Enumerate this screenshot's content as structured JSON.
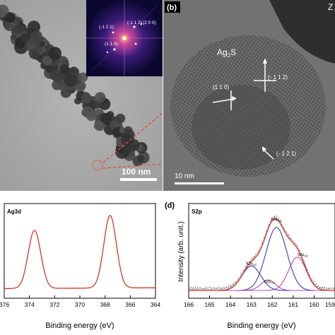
{
  "panel_b": {
    "label": "(b)",
    "corner_letter": "Z",
    "phase_label": "Ag",
    "phase_sub": "2",
    "phase_tail": "S",
    "plane_112": "(- 1 1 2)",
    "plane_110": "(1 1 0)",
    "plane_121": "(- 1 2 1)",
    "scalebar": "10 nm"
  },
  "panel_a": {
    "scalebar": "100 nm",
    "fft_labels": [
      "(-1 1 2)",
      "(2 0 0)",
      "(-1 2 1)",
      "(1 1 0)"
    ]
  },
  "panel_c": {
    "label": "Ag3d",
    "chart_data": {
      "type": "line",
      "xlabel": "Binding energy (eV)",
      "ylabel": "",
      "xlim": [
        376,
        364
      ],
      "x_ticks": [
        376,
        374,
        372,
        370,
        368,
        366,
        364
      ],
      "x_tick_labels": [
        "376",
        "374",
        "372",
        "370",
        "368",
        "366",
        "364"
      ],
      "peaks": [
        {
          "center": 373.6,
          "height": 0.72,
          "width": 0.5
        },
        {
          "center": 367.6,
          "height": 0.9,
          "width": 0.5
        }
      ],
      "baseline": 0.05,
      "color": "#d0392b"
    }
  },
  "panel_d": {
    "label": "(d)",
    "title": "S2p",
    "chart_data": {
      "type": "line",
      "xlabel": "Binding energy (eV)",
      "ylabel": "Intensity (arb. unit.)",
      "xlim": [
        166,
        159
      ],
      "x_ticks": [
        166,
        165,
        164,
        163,
        162,
        161,
        160,
        159
      ],
      "x_tick_labels": [
        "166",
        "165",
        "164",
        "163",
        "162",
        "161",
        "160",
        "159"
      ],
      "components": [
        {
          "name": "S2p",
          "sub": "1/2",
          "center": 161.8,
          "height": 0.72,
          "width": 0.5,
          "color": "#3b3bb8"
        },
        {
          "name": "S2p",
          "sub": "3/2",
          "center": 160.8,
          "height": 0.38,
          "width": 0.42,
          "color": "#b04fb0"
        },
        {
          "name": "S2p",
          "sub": "3/2",
          "center": 163.0,
          "height": 0.28,
          "width": 0.45,
          "color": "#3b3bb8"
        },
        {
          "name": "S2p",
          "sub": "1/2",
          "center": 162.2,
          "height": 0.12,
          "width": 0.35,
          "color": "#b04fb0"
        }
      ],
      "envelope_color": "#d0392b",
      "raw_color": "#777777",
      "baseline": 0.04
    }
  }
}
